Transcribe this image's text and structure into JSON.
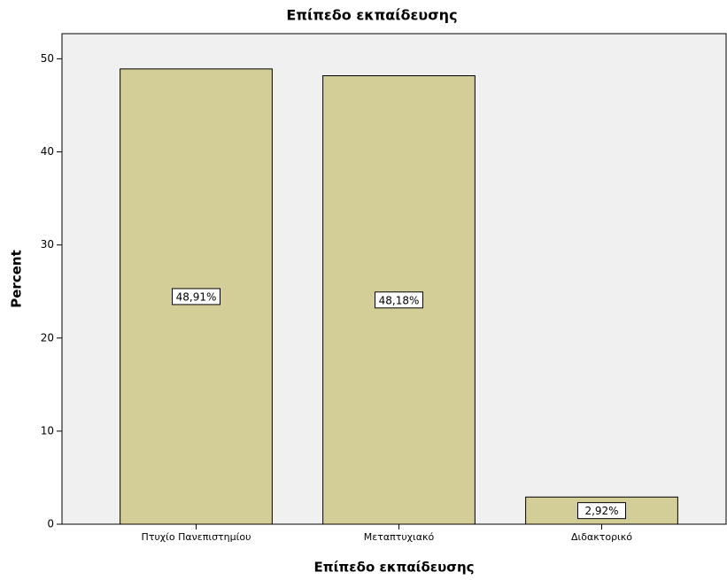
{
  "chart_data": {
    "type": "bar",
    "title": "Επίπεδο εκπαίδευσης",
    "x_label": "Επίπεδο εκπαίδευσης",
    "y_label": "Percent",
    "categories": [
      "Πτυχίο Πανεπιστημίου",
      "Μεταπτυχιακό",
      "Διδακτορικό"
    ],
    "values": [
      48.91,
      48.18,
      2.92
    ],
    "value_labels": [
      "48,91%",
      "48,18%",
      "2,92%"
    ],
    "color": "#d3ce98",
    "ylim": [
      0,
      52.7
    ],
    "yticks": [
      0,
      10,
      20,
      30,
      40,
      50
    ],
    "grid": false
  }
}
